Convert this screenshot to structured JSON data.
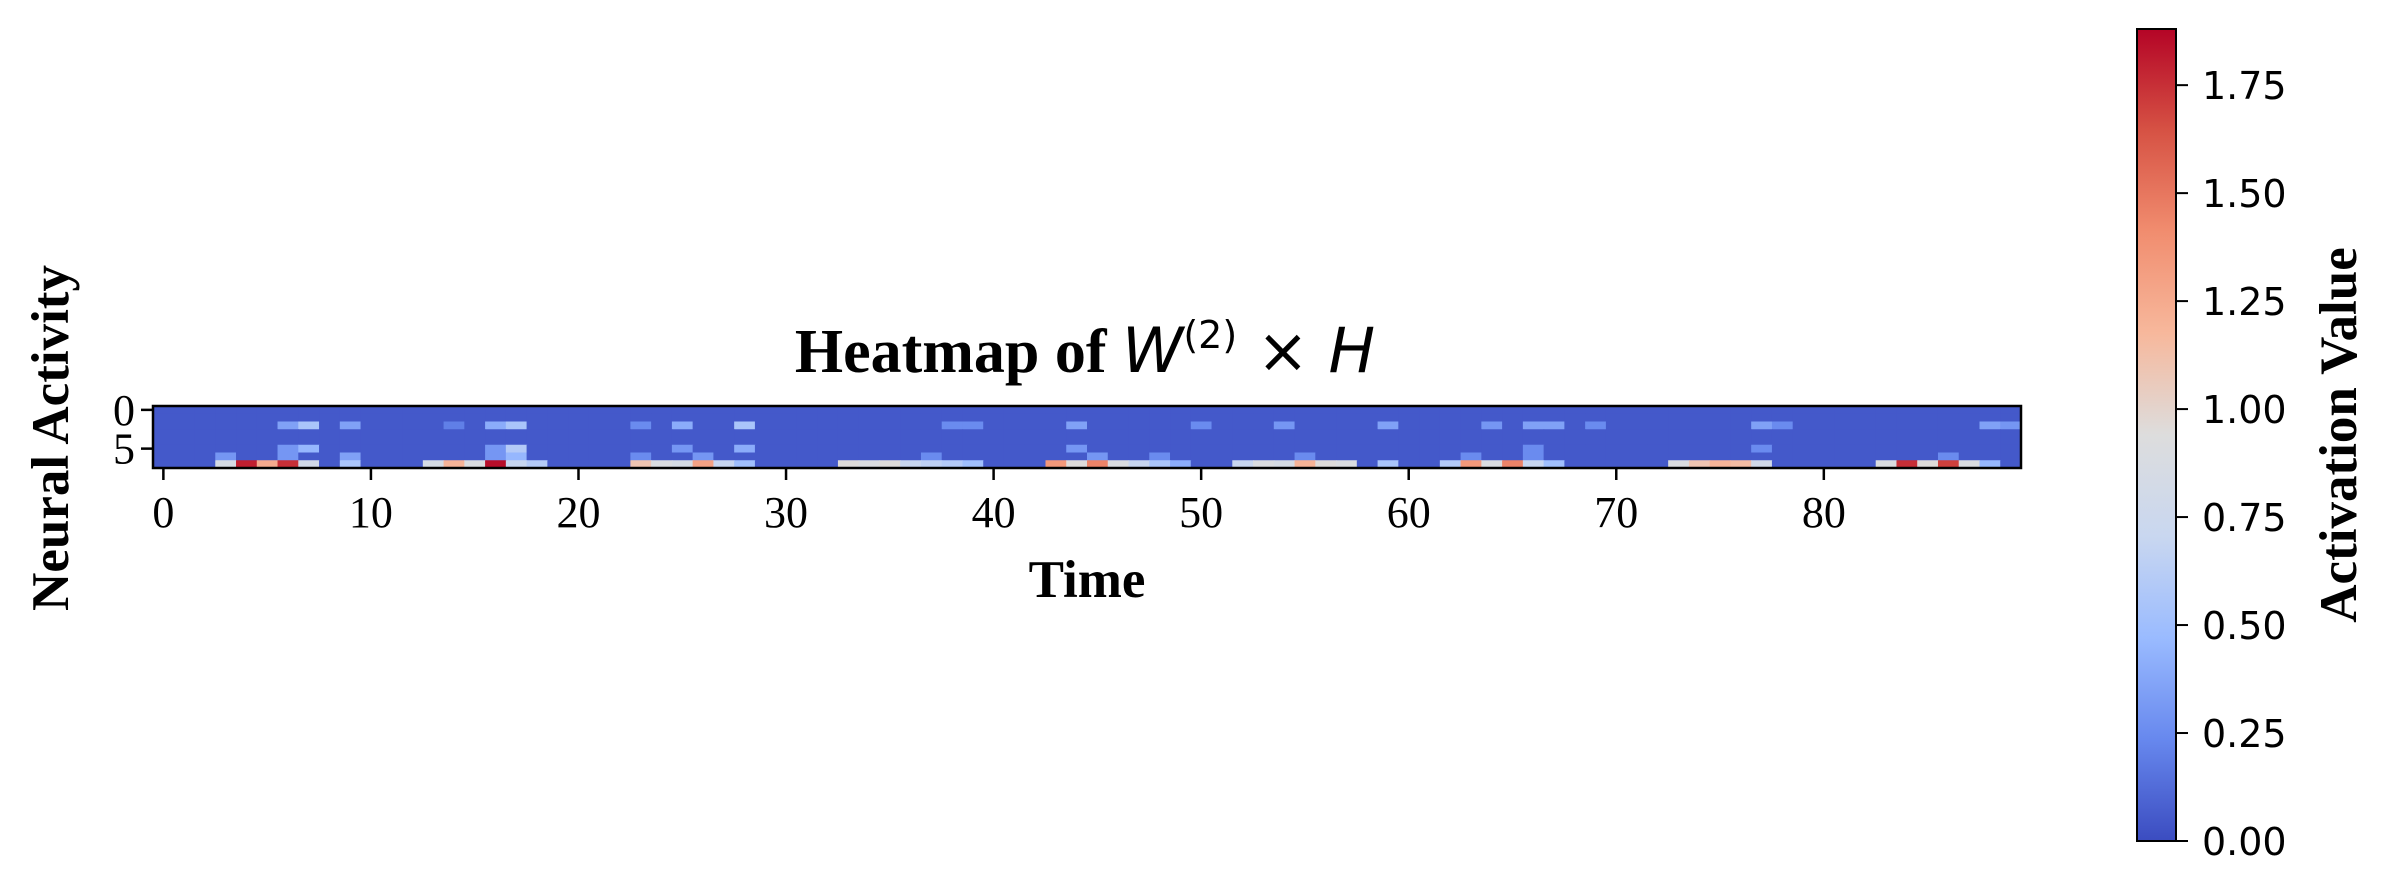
{
  "chart_data": {
    "type": "heatmap",
    "title": "Heatmap of W(2) × H",
    "title_parts": {
      "prefix": "Heatmap of ",
      "w": "W",
      "sup": "(2)",
      "times": " × ",
      "h": "H"
    },
    "xlabel": "Time",
    "ylabel": "Neural Activity",
    "colorbar_label": "Activation Value",
    "colormap": "coolwarm",
    "colormap_stops": [
      "#3b4cc0",
      "#6788ee",
      "#9abbff",
      "#c9d7f0",
      "#dddddd",
      "#f7b89c",
      "#f18d6f",
      "#d65244",
      "#b40426"
    ],
    "n_rows": 8,
    "n_cols": 90,
    "x_ticks": [
      0,
      10,
      20,
      30,
      40,
      50,
      60,
      70,
      80
    ],
    "y_ticks": [
      0,
      5
    ],
    "vmin": 0.0,
    "vmax": 1.88,
    "colorbar_ticks": [
      "0.00",
      "0.25",
      "0.50",
      "0.75",
      "1.00",
      "1.25",
      "1.50",
      "1.75"
    ],
    "background_value": 0.05,
    "cells": [
      [
        2,
        6,
        0.35
      ],
      [
        2,
        7,
        0.55
      ],
      [
        5,
        6,
        0.3
      ],
      [
        5,
        7,
        0.45
      ],
      [
        7,
        3,
        0.85
      ],
      [
        7,
        4,
        1.8
      ],
      [
        7,
        5,
        1.25
      ],
      [
        7,
        6,
        1.75
      ],
      [
        7,
        7,
        0.8
      ],
      [
        6,
        3,
        0.3
      ],
      [
        6,
        6,
        0.3
      ],
      [
        2,
        9,
        0.35
      ],
      [
        6,
        9,
        0.35
      ],
      [
        7,
        9,
        0.55
      ],
      [
        2,
        14,
        0.2
      ],
      [
        2,
        16,
        0.4
      ],
      [
        2,
        17,
        0.55
      ],
      [
        5,
        16,
        0.3
      ],
      [
        5,
        17,
        0.6
      ],
      [
        7,
        13,
        0.85
      ],
      [
        7,
        14,
        1.2
      ],
      [
        7,
        15,
        0.9
      ],
      [
        7,
        16,
        1.85
      ],
      [
        7,
        17,
        0.7
      ],
      [
        7,
        18,
        0.6
      ],
      [
        6,
        16,
        0.3
      ],
      [
        6,
        17,
        0.45
      ],
      [
        2,
        23,
        0.25
      ],
      [
        2,
        25,
        0.4
      ],
      [
        2,
        28,
        0.55
      ],
      [
        5,
        25,
        0.3
      ],
      [
        5,
        28,
        0.4
      ],
      [
        7,
        23,
        1.1
      ],
      [
        7,
        24,
        0.9
      ],
      [
        7,
        25,
        0.85
      ],
      [
        7,
        26,
        1.3
      ],
      [
        7,
        27,
        0.7
      ],
      [
        7,
        28,
        0.5
      ],
      [
        6,
        23,
        0.25
      ],
      [
        6,
        26,
        0.3
      ],
      [
        7,
        33,
        0.95
      ],
      [
        7,
        34,
        0.9
      ],
      [
        7,
        35,
        0.95
      ],
      [
        7,
        36,
        0.7
      ],
      [
        7,
        37,
        0.65
      ],
      [
        7,
        38,
        0.6
      ],
      [
        7,
        39,
        0.5
      ],
      [
        2,
        38,
        0.25
      ],
      [
        2,
        39,
        0.25
      ],
      [
        6,
        37,
        0.25
      ],
      [
        2,
        44,
        0.35
      ],
      [
        5,
        44,
        0.3
      ],
      [
        7,
        43,
        1.35
      ],
      [
        7,
        44,
        0.95
      ],
      [
        7,
        45,
        1.45
      ],
      [
        7,
        46,
        0.9
      ],
      [
        7,
        47,
        0.7
      ],
      [
        7,
        48,
        0.55
      ],
      [
        7,
        49,
        0.4
      ],
      [
        6,
        45,
        0.3
      ],
      [
        6,
        48,
        0.25
      ],
      [
        2,
        50,
        0.25
      ],
      [
        2,
        54,
        0.3
      ],
      [
        7,
        52,
        0.7
      ],
      [
        7,
        53,
        0.9
      ],
      [
        7,
        54,
        0.85
      ],
      [
        7,
        55,
        1.2
      ],
      [
        7,
        56,
        0.95
      ],
      [
        7,
        57,
        0.9
      ],
      [
        6,
        55,
        0.25
      ],
      [
        2,
        59,
        0.35
      ],
      [
        7,
        59,
        0.55
      ],
      [
        2,
        64,
        0.3
      ],
      [
        2,
        66,
        0.35
      ],
      [
        2,
        67,
        0.35
      ],
      [
        5,
        66,
        0.25
      ],
      [
        7,
        62,
        0.6
      ],
      [
        7,
        63,
        1.35
      ],
      [
        7,
        64,
        0.9
      ],
      [
        7,
        65,
        1.45
      ],
      [
        7,
        66,
        0.7
      ],
      [
        7,
        67,
        0.5
      ],
      [
        6,
        63,
        0.25
      ],
      [
        6,
        66,
        0.25
      ],
      [
        2,
        69,
        0.25
      ],
      [
        7,
        73,
        0.9
      ],
      [
        7,
        74,
        1.1
      ],
      [
        7,
        75,
        1.2
      ],
      [
        7,
        76,
        1.15
      ],
      [
        7,
        77,
        0.8
      ],
      [
        2,
        77,
        0.35
      ],
      [
        2,
        78,
        0.25
      ],
      [
        5,
        77,
        0.25
      ],
      [
        7,
        83,
        0.9
      ],
      [
        7,
        84,
        1.75
      ],
      [
        7,
        85,
        0.95
      ],
      [
        7,
        86,
        1.7
      ],
      [
        7,
        87,
        0.9
      ],
      [
        7,
        88,
        0.45
      ],
      [
        6,
        86,
        0.25
      ],
      [
        2,
        88,
        0.35
      ],
      [
        2,
        89,
        0.3
      ]
    ]
  }
}
